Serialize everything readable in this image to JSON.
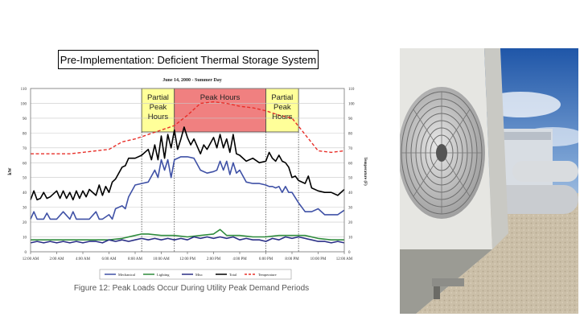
{
  "slide": {
    "title": "Pre-Implementation:  Deficient Thermal Storage System",
    "caption": "Figure 12: Peak Loads Occur During Utility Peak Demand Periods",
    "photo": {
      "icon": "air-conditioner-condenser-fan-icon"
    }
  },
  "chart_data": {
    "type": "line",
    "title": "June 14, 2000 - Summer Day",
    "ylabel": "kW",
    "y2label": "Temperature (F)",
    "ylim": [
      0,
      110
    ],
    "y2lim": [
      0,
      110
    ],
    "yticks": [
      0,
      10,
      20,
      30,
      40,
      50,
      60,
      70,
      80,
      90,
      100,
      110
    ],
    "xlim": [
      0,
      24
    ],
    "x_ticks": [
      0,
      2,
      4,
      6,
      8,
      10,
      12,
      14,
      16,
      18,
      20,
      22,
      24
    ],
    "x_tick_labels": [
      "12:00 AM",
      "2:00 AM",
      "4:00 AM",
      "6:00 AM",
      "8:00 AM",
      "10:00 AM",
      "12:00 PM",
      "2:00 PM",
      "4:00 PM",
      "6:00 PM",
      "8:00 PM",
      "10:00 PM",
      "12:00 AM"
    ],
    "grid": true,
    "legend_position": "bottom",
    "regions": [
      {
        "label": "Partial\nPeak\nHours",
        "x0": 8.5,
        "x1": 11,
        "fill": "#ffff99"
      },
      {
        "label": "Peak Hours",
        "x0": 11,
        "x1": 18,
        "fill": "#f08080"
      },
      {
        "label": "Partial\nPeak\nHours",
        "x0": 18,
        "x1": 20.5,
        "fill": "#ffff99"
      }
    ],
    "series": [
      {
        "name": "Mechanical",
        "color": "#3f51a6",
        "axis": "left",
        "x": [
          0,
          0.25,
          0.5,
          1,
          1.25,
          1.5,
          2,
          2.5,
          3,
          3.25,
          3.5,
          4,
          4.5,
          5,
          5.25,
          5.5,
          6,
          6.25,
          6.5,
          7,
          7.25,
          7.5,
          8,
          8.5,
          9,
          9.5,
          9.75,
          10,
          10.25,
          10.5,
          10.75,
          11,
          11.5,
          12,
          12.5,
          13,
          13.5,
          14,
          14.25,
          14.5,
          14.75,
          15,
          15.25,
          15.5,
          15.75,
          16,
          16.5,
          17,
          17.5,
          18,
          18.25,
          18.5,
          18.75,
          19,
          19.25,
          19.5,
          19.75,
          20,
          20.5,
          21,
          21.5,
          22,
          22.5,
          23,
          23.5,
          24
        ],
        "values": [
          22,
          27,
          22,
          22,
          26,
          22,
          22,
          27,
          22,
          27,
          22,
          22,
          22,
          27,
          22,
          22,
          25,
          22,
          29,
          31,
          29,
          37,
          45,
          46,
          47,
          55,
          50,
          62,
          55,
          62,
          50,
          62,
          64,
          64,
          63,
          55,
          53,
          54,
          55,
          61,
          55,
          61,
          52,
          60,
          53,
          55,
          47,
          46,
          46,
          45,
          44,
          44,
          43,
          44,
          40,
          44,
          40,
          40,
          33,
          27,
          27,
          29,
          25,
          25,
          25,
          28
        ]
      },
      {
        "name": "Lighting",
        "color": "#2e8b3c",
        "axis": "left",
        "x": [
          0,
          1,
          2,
          3,
          4,
          5,
          6,
          7,
          8,
          8.5,
          9,
          10,
          11,
          12,
          13,
          14,
          14.5,
          15,
          16,
          17,
          18,
          19,
          20,
          21,
          22,
          23,
          24
        ],
        "values": [
          8,
          8,
          8,
          8,
          8,
          8,
          8,
          9,
          11,
          12,
          12,
          11,
          11,
          10,
          11,
          12,
          15,
          11,
          11,
          10,
          10,
          11,
          11,
          11,
          9,
          8,
          8
        ]
      },
      {
        "name": "Misc",
        "color": "#2a2f86",
        "axis": "left",
        "x": [
          0,
          0.5,
          1,
          1.5,
          2,
          2.5,
          3,
          3.5,
          4,
          4.5,
          5,
          5.5,
          6,
          6.5,
          7,
          7.5,
          8,
          8.5,
          9,
          9.5,
          10,
          10.5,
          11,
          11.5,
          12,
          12.5,
          13,
          13.5,
          14,
          14.5,
          15,
          15.5,
          16,
          16.5,
          17,
          17.5,
          18,
          18.5,
          19,
          19.5,
          20,
          20.5,
          21,
          21.5,
          22,
          22.5,
          23,
          23.5,
          24
        ],
        "values": [
          6,
          7,
          6,
          7,
          6,
          7,
          6,
          7,
          6,
          7,
          7,
          6,
          8,
          7,
          8,
          7,
          8,
          9,
          8,
          9,
          8,
          9,
          8,
          9,
          8,
          10,
          9,
          10,
          9,
          10,
          9,
          10,
          8,
          9,
          8,
          8,
          7,
          9,
          8,
          10,
          9,
          10,
          9,
          8,
          7,
          7,
          6,
          7,
          6
        ]
      },
      {
        "name": "Total",
        "color": "#000000",
        "axis": "left",
        "x": [
          0,
          0.25,
          0.5,
          0.75,
          1,
          1.25,
          1.5,
          2,
          2.25,
          2.5,
          2.75,
          3,
          3.25,
          3.5,
          3.75,
          4,
          4.25,
          4.5,
          5,
          5.25,
          5.5,
          5.75,
          6,
          6.25,
          6.5,
          7,
          7.25,
          7.5,
          8,
          8.5,
          9,
          9.25,
          9.5,
          9.75,
          10,
          10.25,
          10.5,
          10.75,
          11,
          11.25,
          11.5,
          11.75,
          12,
          12.25,
          12.5,
          13,
          13.25,
          13.5,
          14,
          14.25,
          14.5,
          14.75,
          15,
          15.25,
          15.5,
          15.75,
          16,
          16.5,
          17,
          17.5,
          18,
          18.25,
          18.5,
          18.75,
          19,
          19.25,
          19.5,
          19.75,
          20,
          20.25,
          20.5,
          21,
          21.25,
          21.5,
          22,
          22.5,
          23,
          23.5,
          24
        ],
        "values": [
          35,
          41,
          35,
          36,
          40,
          36,
          37,
          41,
          36,
          41,
          36,
          40,
          35,
          41,
          36,
          41,
          37,
          42,
          38,
          45,
          38,
          44,
          40,
          47,
          49,
          57,
          58,
          63,
          63,
          65,
          69,
          62,
          72,
          62,
          78,
          63,
          79,
          70,
          82,
          69,
          76,
          84,
          77,
          72,
          76,
          66,
          72,
          69,
          77,
          70,
          79,
          70,
          76,
          67,
          79,
          66,
          65,
          61,
          63,
          60,
          61,
          67,
          63,
          61,
          65,
          61,
          60,
          57,
          50,
          51,
          48,
          46,
          51,
          43,
          41,
          40,
          40,
          38,
          42
        ]
      },
      {
        "name": "Temperature",
        "color": "#e8302a",
        "axis": "right",
        "dashed": true,
        "x": [
          0,
          1,
          2,
          3,
          4,
          5,
          6,
          7,
          8,
          9,
          10,
          11,
          12,
          13,
          14,
          15,
          16,
          17,
          18,
          19,
          20,
          21,
          22,
          23,
          24
        ],
        "values": [
          66,
          66,
          66,
          66,
          67,
          68,
          69,
          74,
          76,
          79,
          82,
          85,
          92,
          100,
          101,
          100,
          98,
          97,
          95,
          92,
          90,
          79,
          68,
          67,
          68
        ]
      }
    ]
  }
}
